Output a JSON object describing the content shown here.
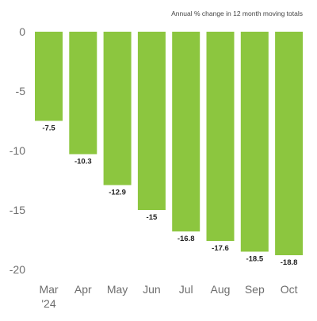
{
  "chart_data": {
    "type": "bar",
    "title": "",
    "subtitle": "Annual % change in 12 month moving totals",
    "xlabel": "",
    "ylabel": "",
    "categories": [
      "Mar",
      "Apr",
      "May",
      "Jun",
      "Jul",
      "Aug",
      "Sep",
      "Oct"
    ],
    "category_sublabels": [
      "'24",
      "",
      "",
      "",
      "",
      "",
      "",
      ""
    ],
    "values": [
      -7.5,
      -10.3,
      -12.9,
      -15,
      -16.8,
      -17.6,
      -18.5,
      -18.8
    ],
    "value_labels": [
      "-7.5",
      "-10.3",
      "-12.9",
      "-15",
      "-16.8",
      "-17.6",
      "-18.5",
      "-18.8"
    ],
    "ylim": [
      -20,
      0
    ],
    "yticks": [
      0,
      -5,
      -10,
      -15,
      -20
    ],
    "ytick_labels": [
      "0",
      "-5",
      "-10",
      "-15",
      "-20"
    ],
    "grid": false,
    "legend": "none",
    "colors": {
      "bar": "#8cc63f",
      "text": "#6d6d6d",
      "label": "#222222"
    }
  }
}
